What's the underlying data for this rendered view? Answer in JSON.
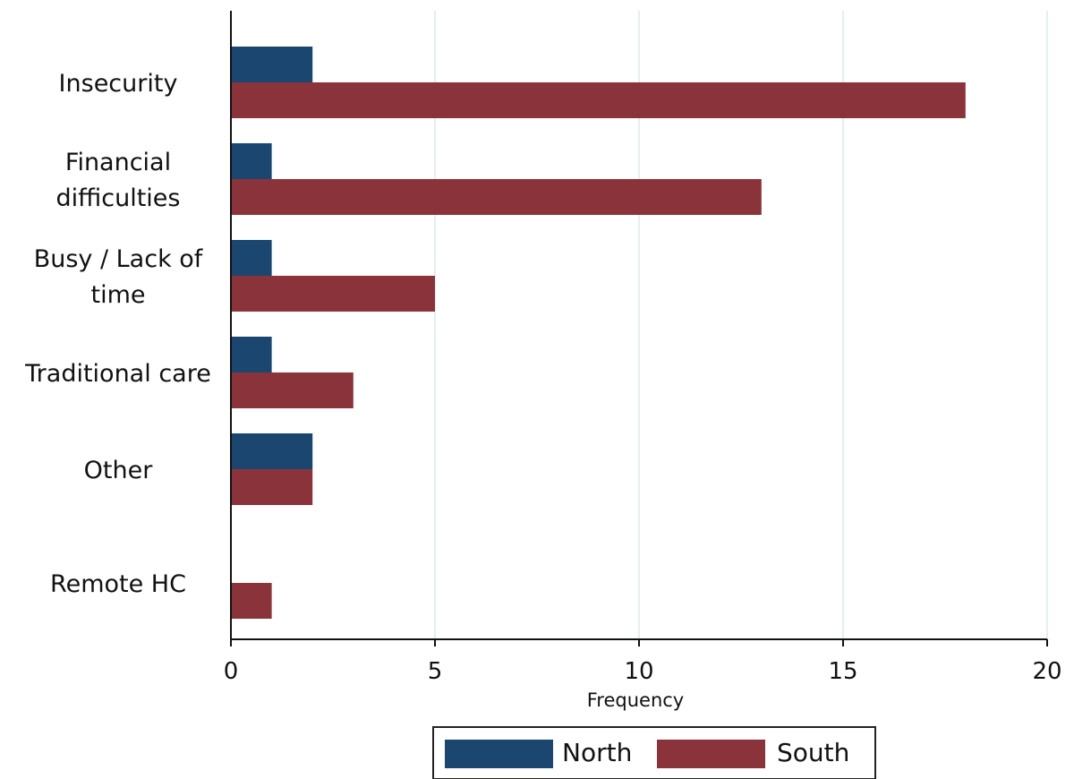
{
  "chart_data": {
    "type": "bar",
    "orientation": "horizontal",
    "title": "",
    "xlabel": "Frequency",
    "ylabel": "",
    "xlim": [
      0,
      20
    ],
    "x_ticks": [
      0,
      5,
      10,
      15,
      20
    ],
    "grid": "vertical",
    "categories": [
      "Insecurity",
      "Financial difficulties",
      "Busy / Lack of time",
      "Traditional care",
      "Other",
      "Remote HC"
    ],
    "category_label_lines": [
      [
        "Insecurity"
      ],
      [
        "Financial",
        "difficulties"
      ],
      [
        "Busy / Lack of",
        "time"
      ],
      [
        "Traditional care"
      ],
      [
        "Other"
      ],
      [
        "Remote HC"
      ]
    ],
    "series": [
      {
        "name": "North",
        "color": "#1b4670",
        "values": [
          2,
          1,
          1,
          1,
          2,
          null
        ]
      },
      {
        "name": "South",
        "color": "#8b333b",
        "values": [
          18,
          13,
          5,
          3,
          2,
          1
        ]
      }
    ],
    "legend": {
      "position": "bottom",
      "items": [
        "North",
        "South"
      ]
    },
    "colors": {
      "grid": "#dde9ea",
      "axis": "#111111",
      "legend_border": "#222222"
    }
  }
}
